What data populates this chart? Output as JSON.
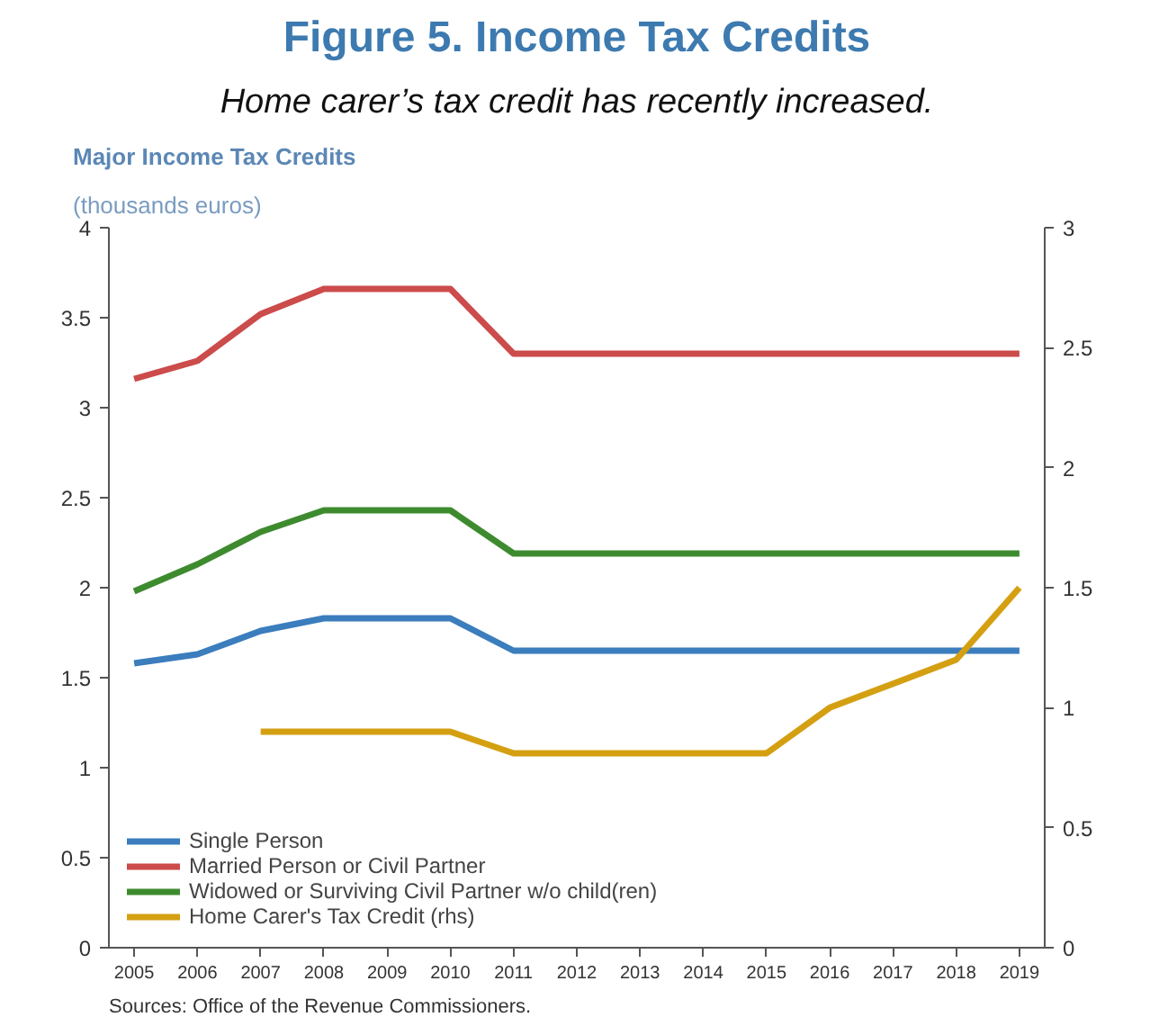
{
  "chart_data": {
    "type": "line",
    "title": "Figure 5. Income Tax Credits",
    "subtitle": "Home carer’s tax credit has recently increased.",
    "ylabel": "(thousands euros)",
    "annotations": [
      "Major Income Tax Credits",
      "Sources: Office of the Revenue Commissioners."
    ],
    "x": [
      2005,
      2006,
      2007,
      2008,
      2009,
      2010,
      2011,
      2012,
      2013,
      2014,
      2015,
      2016,
      2017,
      2018,
      2019
    ],
    "series": [
      {
        "name": "Single Person",
        "color": "#3b7dbd",
        "values": [
          1.58,
          1.63,
          1.76,
          1.83,
          1.83,
          1.83,
          1.65,
          1.65,
          1.65,
          1.65,
          1.65,
          1.65,
          1.65,
          1.65,
          1.65
        ]
      },
      {
        "name": "Married Person or Civil Partner",
        "color": "#cc4b4b",
        "values": [
          3.16,
          3.26,
          3.52,
          3.66,
          3.66,
          3.66,
          3.3,
          3.3,
          3.3,
          3.3,
          3.3,
          3.3,
          3.3,
          3.3,
          3.3
        ]
      },
      {
        "name": "Widowed or Surviving Civil Partner w/o child(ren)",
        "color": "#3e8b2f",
        "values": [
          1.98,
          2.13,
          2.31,
          2.43,
          2.43,
          2.43,
          2.19,
          2.19,
          2.19,
          2.19,
          2.19,
          2.19,
          2.19,
          2.19,
          2.19
        ]
      },
      {
        "name": "Home Carer's Tax Credit (rhs)",
        "color": "#d4a012",
        "axis": "y2",
        "values": [
          null,
          null,
          0.9,
          0.9,
          0.9,
          0.9,
          0.81,
          0.81,
          0.81,
          0.81,
          0.81,
          1.0,
          1.1,
          1.2,
          1.5
        ]
      }
    ],
    "xlim": [
      2004.6,
      2019.4
    ],
    "xticks": [
      2005,
      2006,
      2007,
      2008,
      2009,
      2010,
      2011,
      2012,
      2013,
      2014,
      2015,
      2016,
      2017,
      2018,
      2019
    ],
    "ylim": [
      0,
      4
    ],
    "yticks": [
      0,
      0.5,
      1,
      1.5,
      2,
      2.5,
      3,
      3.5,
      4
    ],
    "y2lim": [
      0,
      3
    ],
    "y2ticks": [
      0,
      0.5,
      1,
      1.5,
      2,
      2.5,
      3
    ],
    "grid": false,
    "legend": "bottom left",
    "line_style": "solid",
    "marker": "none"
  }
}
